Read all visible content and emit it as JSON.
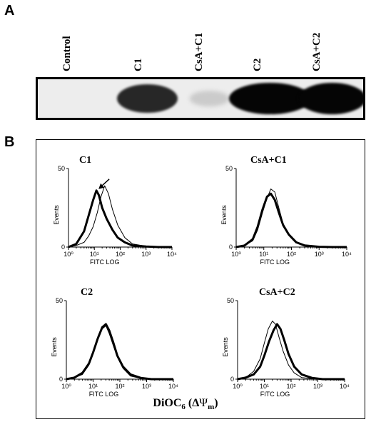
{
  "panel_a": {
    "label": "A",
    "lanes": [
      {
        "label": "Control",
        "band_intensity": 0.0
      },
      {
        "label": "C1",
        "band_intensity": 0.85
      },
      {
        "label": "CsA+C1",
        "band_intensity": 0.12
      },
      {
        "label": "C2",
        "band_intensity": 1.0
      },
      {
        "label": "CsA+C2",
        "band_intensity": 1.0
      }
    ]
  },
  "panel_b": {
    "label": "B",
    "x_axis_caption": "DiOC6 (ΔΨm)",
    "caption_parts": {
      "pre": "DiOC",
      "sub6": "6",
      "delta": "Δ",
      "psi": "Ψ",
      "subm": "m"
    }
  },
  "chart_data": [
    {
      "type": "line",
      "title": "C1",
      "xlabel": "FITC LOG",
      "ylabel": "Events",
      "xscale": "log",
      "xlim": [
        1,
        10000
      ],
      "ylim": [
        0,
        50
      ],
      "xticks": [
        "10⁰",
        "10¹",
        "10²",
        "10³",
        "10⁴"
      ],
      "yticks": [
        "0",
        "50"
      ],
      "annotation": "arrow pointing at thick-line peak",
      "series": [
        {
          "style": "thick",
          "x": [
            1,
            2,
            4,
            6,
            9,
            12,
            15,
            20,
            30,
            50,
            80,
            150,
            300,
            1000,
            3000,
            10000
          ],
          "y": [
            0,
            2,
            10,
            20,
            30,
            36,
            33,
            25,
            18,
            11,
            6,
            3,
            1,
            0.3,
            0,
            0
          ]
        },
        {
          "style": "thin",
          "x": [
            1,
            2,
            4,
            6,
            9,
            13,
            18,
            25,
            35,
            50,
            80,
            150,
            300,
            1000,
            3000,
            10000
          ],
          "y": [
            0,
            1,
            3,
            7,
            13,
            22,
            32,
            39,
            34,
            24,
            14,
            6,
            2,
            0.5,
            0,
            0
          ]
        }
      ]
    },
    {
      "type": "line",
      "title": "CsA+C1",
      "xlabel": "FITC LOG",
      "ylabel": "Events",
      "xscale": "log",
      "xlim": [
        1,
        10000
      ],
      "ylim": [
        0,
        50
      ],
      "xticks": [
        "10⁰",
        "10¹",
        "10²",
        "10³",
        "10⁴"
      ],
      "yticks": [
        "0",
        "50"
      ],
      "series": [
        {
          "style": "thick",
          "x": [
            1,
            2,
            4,
            6,
            9,
            13,
            18,
            25,
            35,
            50,
            80,
            150,
            300,
            1000,
            3000,
            10000
          ],
          "y": [
            0,
            1,
            5,
            13,
            24,
            32,
            34,
            30,
            22,
            14,
            8,
            3,
            1,
            0.2,
            0,
            0
          ]
        },
        {
          "style": "thin",
          "x": [
            1,
            2,
            4,
            6,
            9,
            13,
            18,
            25,
            35,
            50,
            80,
            150,
            300,
            1000,
            3000,
            10000
          ],
          "y": [
            0,
            1,
            4,
            11,
            22,
            31,
            37,
            35,
            25,
            15,
            8,
            3,
            1,
            0.2,
            0,
            0
          ]
        }
      ]
    },
    {
      "type": "line",
      "title": "C2",
      "xlabel": "FITC LOG",
      "ylabel": "Events",
      "xscale": "log",
      "xlim": [
        1,
        10000
      ],
      "ylim": [
        0,
        50
      ],
      "xticks": [
        "10⁰",
        "10¹",
        "10²",
        "10³",
        "10⁴"
      ],
      "yticks": [
        "0",
        "50"
      ],
      "series": [
        {
          "style": "thick",
          "x": [
            1,
            2,
            4,
            7,
            10,
            15,
            22,
            30,
            40,
            55,
            80,
            130,
            250,
            600,
            1500,
            10000
          ],
          "y": [
            0,
            1,
            4,
            10,
            17,
            26,
            33,
            35,
            31,
            24,
            15,
            8,
            3,
            0.8,
            0,
            0
          ]
        },
        {
          "style": "thin",
          "x": [
            1,
            2,
            4,
            7,
            10,
            15,
            22,
            30,
            40,
            55,
            80,
            130,
            250,
            600,
            1500,
            10000
          ],
          "y": [
            0,
            1,
            3,
            9,
            16,
            25,
            32,
            34,
            29,
            22,
            14,
            7,
            2,
            0.5,
            0,
            0
          ]
        }
      ]
    },
    {
      "type": "line",
      "title": "CsA+C2",
      "xlabel": "FITC LOG",
      "ylabel": "Events",
      "xscale": "log",
      "xlim": [
        1,
        10000
      ],
      "ylim": [
        0,
        50
      ],
      "xticks": [
        "10⁰",
        "10¹",
        "10²",
        "10³",
        "10⁴"
      ],
      "yticks": [
        "0",
        "50"
      ],
      "series": [
        {
          "style": "thick",
          "x": [
            1,
            2,
            4,
            7,
            10,
            15,
            22,
            30,
            40,
            55,
            80,
            130,
            250,
            600,
            1500,
            10000
          ],
          "y": [
            0,
            1,
            3,
            8,
            15,
            24,
            31,
            35,
            32,
            25,
            16,
            8,
            3,
            0.8,
            0,
            0
          ]
        },
        {
          "style": "thin",
          "x": [
            1,
            2,
            4,
            7,
            10,
            14,
            20,
            26,
            35,
            50,
            80,
            130,
            250,
            600,
            1500,
            10000
          ],
          "y": [
            0,
            1,
            5,
            13,
            23,
            32,
            37,
            35,
            27,
            18,
            9,
            4,
            1,
            0.3,
            0,
            0
          ]
        }
      ]
    }
  ]
}
